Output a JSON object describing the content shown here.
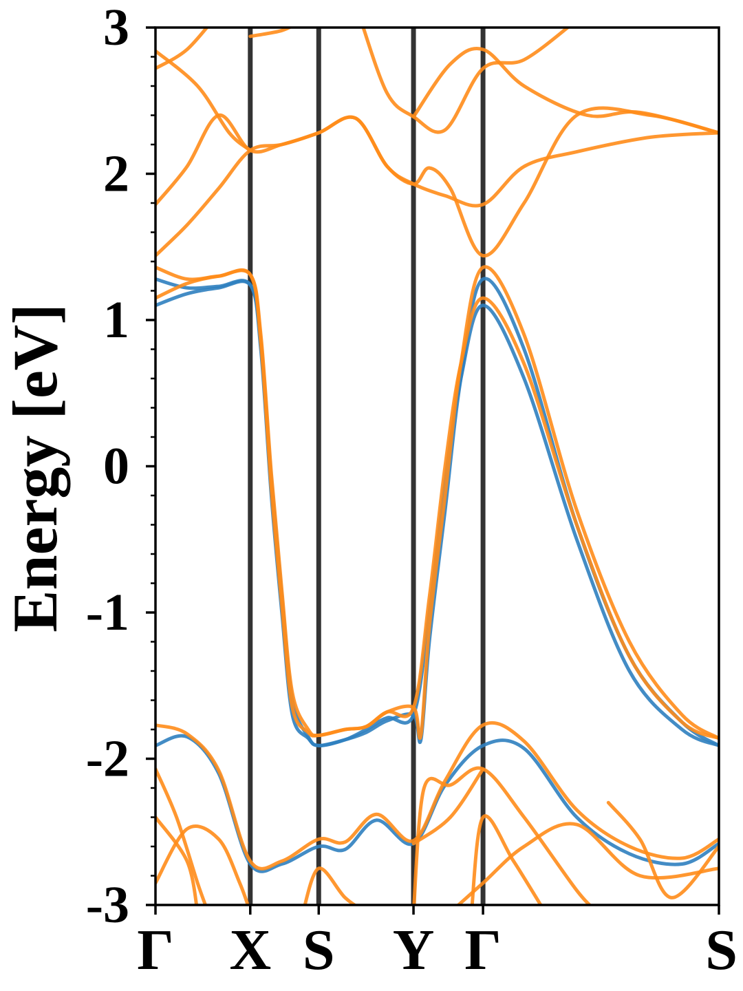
{
  "chart_data": {
    "type": "line",
    "title": "",
    "xlabel": "",
    "ylabel": "Energy [eV]",
    "ylim": [
      -3,
      3
    ],
    "yticks": [
      "-3",
      "-2",
      "-1",
      "0",
      "1",
      "2",
      "3"
    ],
    "kpath": {
      "labels": [
        "Γ",
        "X",
        "S",
        "Y",
        "Γ",
        "S"
      ],
      "positions": [
        0,
        0.9,
        1.55,
        2.45,
        3.11,
        5.35
      ]
    },
    "grid": false,
    "legend": "none",
    "colors": {
      "blue": "#2f7fbf",
      "orange": "#ff8c1a",
      "kline": "#333333",
      "axis": "#000000"
    },
    "series": [
      {
        "color": "blue",
        "points": [
          [
            0,
            1.1
          ],
          [
            0.3,
            1.18
          ],
          [
            0.6,
            1.22
          ],
          [
            0.9,
            1.24
          ],
          [
            1.0,
            0.85
          ],
          [
            1.1,
            -0.1
          ],
          [
            1.2,
            -0.9
          ],
          [
            1.3,
            -1.6
          ],
          [
            1.45,
            -1.85
          ],
          [
            1.55,
            -1.91
          ],
          [
            1.8,
            -1.87
          ],
          [
            2.0,
            -1.8
          ],
          [
            2.2,
            -1.72
          ],
          [
            2.45,
            -1.7
          ],
          [
            2.6,
            -1.0
          ],
          [
            2.75,
            -0.1
          ],
          [
            2.9,
            0.6
          ],
          [
            3.11,
            1.1
          ],
          [
            3.5,
            0.6
          ],
          [
            4.0,
            -0.5
          ],
          [
            4.5,
            -1.4
          ],
          [
            5.0,
            -1.8
          ],
          [
            5.35,
            -1.91
          ]
        ]
      },
      {
        "color": "blue",
        "points": [
          [
            0,
            1.28
          ],
          [
            0.3,
            1.22
          ],
          [
            0.6,
            1.23
          ],
          [
            0.9,
            1.24
          ],
          [
            1.0,
            0.8
          ],
          [
            1.1,
            -0.2
          ],
          [
            1.2,
            -1.0
          ],
          [
            1.3,
            -1.7
          ],
          [
            1.45,
            -1.86
          ],
          [
            1.55,
            -1.91
          ],
          [
            1.8,
            -1.87
          ],
          [
            2.0,
            -1.82
          ],
          [
            2.2,
            -1.74
          ],
          [
            2.45,
            -1.7
          ],
          [
            2.52,
            -1.87
          ],
          [
            2.6,
            -1.2
          ],
          [
            2.75,
            -0.3
          ],
          [
            2.9,
            0.6
          ],
          [
            3.11,
            1.28
          ],
          [
            3.5,
            0.8
          ],
          [
            4.0,
            -0.4
          ],
          [
            4.5,
            -1.3
          ],
          [
            5.0,
            -1.75
          ],
          [
            5.35,
            -1.91
          ]
        ]
      },
      {
        "color": "orange",
        "points": [
          [
            0,
            1.15
          ],
          [
            0.3,
            1.25
          ],
          [
            0.6,
            1.3
          ],
          [
            0.9,
            1.31
          ],
          [
            1.0,
            0.9
          ],
          [
            1.1,
            -0.05
          ],
          [
            1.2,
            -0.85
          ],
          [
            1.3,
            -1.55
          ],
          [
            1.45,
            -1.8
          ],
          [
            1.55,
            -1.84
          ],
          [
            1.8,
            -1.8
          ],
          [
            2.0,
            -1.78
          ],
          [
            2.2,
            -1.68
          ],
          [
            2.45,
            -1.65
          ],
          [
            2.6,
            -0.9
          ],
          [
            2.75,
            0.0
          ],
          [
            2.9,
            0.7
          ],
          [
            3.11,
            1.15
          ],
          [
            3.5,
            0.7
          ],
          [
            4.0,
            -0.4
          ],
          [
            4.5,
            -1.3
          ],
          [
            5.0,
            -1.75
          ],
          [
            5.35,
            -1.86
          ]
        ]
      },
      {
        "color": "orange",
        "points": [
          [
            0,
            1.36
          ],
          [
            0.3,
            1.28
          ],
          [
            0.6,
            1.3
          ],
          [
            0.9,
            1.31
          ],
          [
            1.0,
            0.85
          ],
          [
            1.1,
            -0.15
          ],
          [
            1.2,
            -0.95
          ],
          [
            1.3,
            -1.65
          ],
          [
            1.45,
            -1.82
          ],
          [
            1.55,
            -1.84
          ],
          [
            1.8,
            -1.8
          ],
          [
            2.0,
            -1.78
          ],
          [
            2.2,
            -1.68
          ],
          [
            2.45,
            -1.65
          ],
          [
            2.52,
            -1.84
          ],
          [
            2.6,
            -1.1
          ],
          [
            2.75,
            -0.2
          ],
          [
            2.9,
            0.7
          ],
          [
            3.11,
            1.36
          ],
          [
            3.5,
            0.9
          ],
          [
            4.0,
            -0.3
          ],
          [
            4.5,
            -1.2
          ],
          [
            5.0,
            -1.7
          ],
          [
            5.35,
            -1.86
          ]
        ]
      },
      {
        "color": "orange",
        "points": [
          [
            0,
            1.44
          ],
          [
            0.3,
            1.65
          ],
          [
            0.6,
            1.9
          ],
          [
            0.9,
            2.16
          ],
          [
            1.2,
            2.2
          ],
          [
            1.55,
            2.28
          ],
          [
            1.9,
            2.38
          ],
          [
            2.2,
            2.05
          ],
          [
            2.45,
            1.93
          ],
          [
            2.75,
            1.85
          ],
          [
            3.11,
            1.79
          ],
          [
            3.5,
            2.05
          ],
          [
            4.0,
            2.15
          ],
          [
            4.7,
            2.25
          ],
          [
            5.35,
            2.28
          ]
        ]
      },
      {
        "color": "orange",
        "points": [
          [
            0,
            1.79
          ],
          [
            0.3,
            2.05
          ],
          [
            0.6,
            2.4
          ],
          [
            0.9,
            2.16
          ],
          [
            1.2,
            2.2
          ],
          [
            1.55,
            2.28
          ],
          [
            1.9,
            2.38
          ],
          [
            2.2,
            2.05
          ],
          [
            2.45,
            1.93
          ],
          [
            2.6,
            2.04
          ],
          [
            2.8,
            1.9
          ],
          [
            3.11,
            1.44
          ],
          [
            3.5,
            1.8
          ],
          [
            4.0,
            2.4
          ],
          [
            4.7,
            2.4
          ],
          [
            5.35,
            2.28
          ]
        ]
      },
      {
        "color": "orange",
        "points": [
          [
            0,
            2.72
          ],
          [
            0.3,
            2.85
          ],
          [
            0.6,
            3.1
          ]
        ]
      },
      {
        "color": "orange",
        "points": [
          [
            0,
            2.84
          ],
          [
            0.4,
            2.6
          ],
          [
            0.7,
            2.28
          ],
          [
            0.9,
            2.16
          ]
        ]
      },
      {
        "color": "orange",
        "points": [
          [
            0.9,
            2.94
          ],
          [
            1.2,
            2.98
          ],
          [
            1.4,
            3.05
          ]
        ]
      },
      {
        "color": "orange",
        "points": [
          [
            1.95,
            3.05
          ],
          [
            2.2,
            2.55
          ],
          [
            2.45,
            2.39
          ],
          [
            2.75,
            2.3
          ],
          [
            3.11,
            2.72
          ],
          [
            3.5,
            2.78
          ],
          [
            4.0,
            3.05
          ]
        ]
      },
      {
        "color": "orange",
        "points": [
          [
            2.45,
            2.39
          ],
          [
            2.8,
            2.75
          ],
          [
            3.11,
            2.85
          ],
          [
            3.5,
            2.6
          ],
          [
            4.1,
            2.4
          ],
          [
            4.6,
            2.42
          ],
          [
            5.35,
            2.28
          ]
        ]
      },
      {
        "color": "blue",
        "points": [
          [
            0,
            -1.91
          ],
          [
            0.3,
            -1.85
          ],
          [
            0.6,
            -2.1
          ],
          [
            0.9,
            -2.72
          ],
          [
            1.2,
            -2.72
          ],
          [
            1.55,
            -2.6
          ],
          [
            1.8,
            -2.62
          ],
          [
            2.1,
            -2.42
          ],
          [
            2.45,
            -2.58
          ],
          [
            2.75,
            -2.18
          ],
          [
            3.11,
            -1.91
          ],
          [
            3.5,
            -1.93
          ],
          [
            4.0,
            -2.4
          ],
          [
            4.5,
            -2.65
          ],
          [
            5.0,
            -2.72
          ],
          [
            5.35,
            -2.58
          ]
        ]
      },
      {
        "color": "orange",
        "points": [
          [
            0,
            -1.77
          ],
          [
            0.3,
            -1.83
          ],
          [
            0.6,
            -2.08
          ],
          [
            0.9,
            -2.7
          ],
          [
            1.2,
            -2.7
          ],
          [
            1.55,
            -2.55
          ],
          [
            1.8,
            -2.57
          ],
          [
            2.1,
            -2.38
          ],
          [
            2.45,
            -2.56
          ],
          [
            2.75,
            -2.15
          ],
          [
            3.11,
            -1.77
          ],
          [
            3.5,
            -1.88
          ],
          [
            4.0,
            -2.35
          ],
          [
            4.5,
            -2.6
          ],
          [
            5.0,
            -2.68
          ],
          [
            5.35,
            -2.55
          ]
        ]
      },
      {
        "color": "orange",
        "points": [
          [
            0,
            -2.07
          ],
          [
            0.2,
            -2.4
          ],
          [
            0.4,
            -2.85
          ],
          [
            0.5,
            -3.05
          ]
        ]
      },
      {
        "color": "orange",
        "points": [
          [
            0,
            -2.4
          ],
          [
            0.3,
            -2.7
          ],
          [
            0.4,
            -3.05
          ]
        ]
      },
      {
        "color": "orange",
        "points": [
          [
            0,
            -2.85
          ],
          [
            0.3,
            -2.48
          ],
          [
            0.6,
            -2.55
          ],
          [
            0.8,
            -2.85
          ],
          [
            0.9,
            -3.05
          ]
        ]
      },
      {
        "color": "orange",
        "points": [
          [
            1.4,
            -3.05
          ],
          [
            1.55,
            -2.75
          ],
          [
            1.8,
            -2.95
          ],
          [
            2.0,
            -3.05
          ]
        ]
      },
      {
        "color": "orange",
        "points": [
          [
            2.45,
            -3.05
          ],
          [
            2.55,
            -2.2
          ],
          [
            2.8,
            -2.18
          ],
          [
            3.11,
            -2.07
          ],
          [
            3.5,
            -2.4
          ],
          [
            4.0,
            -2.9
          ],
          [
            4.2,
            -3.05
          ]
        ]
      },
      {
        "color": "orange",
        "points": [
          [
            2.45,
            -2.58
          ],
          [
            2.8,
            -2.4
          ],
          [
            3.11,
            -2.07
          ]
        ]
      },
      {
        "color": "orange",
        "points": [
          [
            2.8,
            -3.05
          ],
          [
            3.11,
            -2.85
          ],
          [
            3.5,
            -2.6
          ],
          [
            4.0,
            -2.45
          ],
          [
            4.6,
            -2.8
          ],
          [
            5.35,
            -2.75
          ]
        ]
      },
      {
        "color": "orange",
        "points": [
          [
            3.0,
            -3.05
          ],
          [
            3.11,
            -2.4
          ],
          [
            3.4,
            -2.7
          ],
          [
            3.7,
            -3.05
          ]
        ]
      },
      {
        "color": "orange",
        "points": [
          [
            4.3,
            -2.3
          ],
          [
            4.6,
            -2.55
          ],
          [
            4.9,
            -2.95
          ],
          [
            5.35,
            -2.6
          ]
        ]
      }
    ]
  }
}
